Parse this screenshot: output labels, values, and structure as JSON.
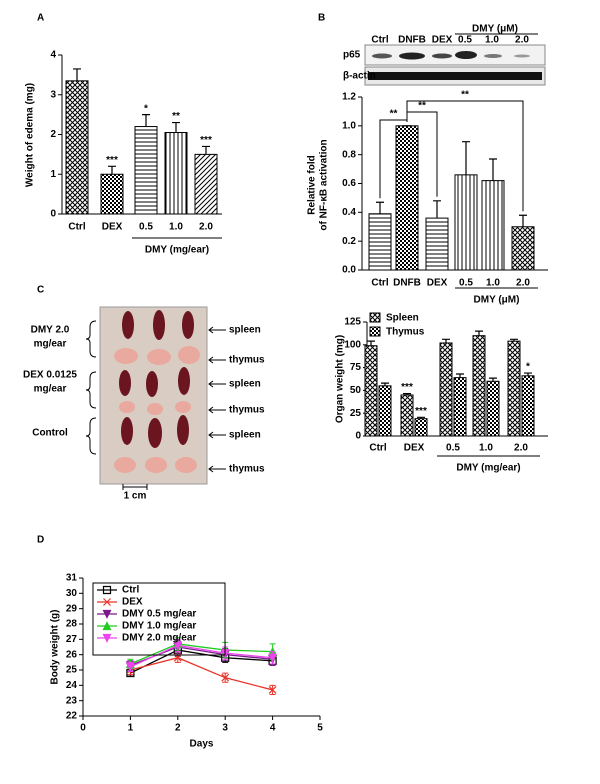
{
  "chart_data": [
    {
      "panel": "A",
      "type": "bar",
      "categories": [
        "Ctrl",
        "DEX",
        "0.5",
        "1.0",
        "2.0"
      ],
      "values": [
        3.35,
        1.0,
        2.2,
        2.05,
        1.5
      ],
      "errors": [
        0.3,
        0.2,
        0.3,
        0.25,
        0.2
      ],
      "significance": [
        null,
        "***",
        "*",
        "**",
        "***"
      ],
      "color": "#000000",
      "ylabel": "Weight of edema (mg)",
      "group_label": "DMY (mg/ear)",
      "ylim": [
        0,
        4
      ],
      "yticks": [
        0,
        1,
        2,
        3,
        4
      ]
    },
    {
      "panel": "B",
      "type": "bar",
      "blot": {
        "lanes": [
          "Ctrl",
          "DNFB",
          "DEX",
          "0.5",
          "1.0",
          "2.0"
        ],
        "group_label": "DMY (μM)",
        "rows": [
          "p65",
          "β-actin"
        ]
      },
      "categories": [
        "Ctrl",
        "DNFB",
        "DEX",
        "0.5",
        "1.0",
        "2.0"
      ],
      "values": [
        0.39,
        1.0,
        0.36,
        0.66,
        0.62,
        0.3
      ],
      "errors": [
        0.08,
        0.0,
        0.12,
        0.23,
        0.15,
        0.08
      ],
      "comparisons": [
        {
          "pair": [
            0,
            1
          ],
          "label": "**"
        },
        {
          "pair": [
            1,
            2
          ],
          "label": "**"
        },
        {
          "pair": [
            1,
            5
          ],
          "label": "**"
        }
      ],
      "color": "#000000",
      "ylabel": [
        "Relative fold",
        "of NF-κB activation"
      ],
      "group_label": "DMY (μM)",
      "ylim": [
        0,
        1.2
      ],
      "yticks": [
        {
          "value": 0,
          "label": "0.0"
        },
        0.2,
        0.4,
        0.6,
        0.8,
        {
          "value": 1,
          "label": "1.0"
        },
        1.2
      ]
    },
    {
      "panel": "C",
      "type": "bar",
      "photo": {
        "groups": [
          [
            "DMY 2.0",
            "mg/ear"
          ],
          [
            "DEX 0.0125",
            "mg/ear"
          ],
          [
            "Control"
          ]
        ],
        "organs": [
          "spleen",
          "thymus",
          "spleen",
          "thymus",
          "spleen",
          "thymus"
        ],
        "scale": "1 cm"
      },
      "categories": [
        "Ctrl",
        "DEX",
        "0.5",
        "1.0",
        "2.0"
      ],
      "series": [
        {
          "name": "Spleen",
          "color": "#000000",
          "values": [
            99,
            45,
            102,
            110,
            104
          ],
          "errors": [
            5,
            1.5,
            4,
            5,
            2
          ],
          "significance": [
            null,
            "***",
            null,
            null,
            null
          ]
        },
        {
          "name": "Thymus",
          "color": "#000000",
          "values": [
            55,
            19,
            64,
            60,
            66
          ],
          "errors": [
            3,
            1.5,
            4,
            3.5,
            3
          ],
          "significance": [
            null,
            "***",
            null,
            null,
            "*"
          ]
        }
      ],
      "ylabel": "Organ weight (mg)",
      "group_label": "DMY (mg/ear)",
      "ylim": [
        0,
        125
      ],
      "yticks": [
        0,
        25,
        50,
        75,
        100,
        125
      ]
    },
    {
      "panel": "D",
      "type": "line",
      "x": [
        1,
        2,
        3,
        4
      ],
      "series": [
        {
          "name": "Ctrl",
          "color": "#000000",
          "marker": "square",
          "values": [
            24.8,
            26.3,
            25.8,
            25.6
          ],
          "errors": [
            0.2,
            0.4,
            0.3,
            0.3
          ]
        },
        {
          "name": "DEX",
          "color": "#e8332a",
          "marker": "x",
          "values": [
            25.0,
            25.8,
            24.5,
            23.7
          ],
          "errors": [
            0.3,
            0.3,
            0.3,
            0.3
          ]
        },
        {
          "name": "DMY 0.5 mg/ear",
          "color": "#7a1a8c",
          "marker": "down",
          "values": [
            25.3,
            26.5,
            26.0,
            25.7
          ],
          "errors": [
            0.3,
            0.4,
            0.4,
            0.4
          ]
        },
        {
          "name": "DMY 1.0 mg/ear",
          "color": "#22cc22",
          "marker": "up",
          "values": [
            25.4,
            26.7,
            26.3,
            26.2
          ],
          "errors": [
            0.3,
            0.4,
            0.5,
            0.5
          ]
        },
        {
          "name": "DMY 2.0 mg/ear",
          "color": "#ee44ee",
          "marker": "down",
          "values": [
            25.2,
            26.6,
            26.1,
            25.8
          ],
          "errors": [
            0.3,
            0.4,
            0.4,
            0.4
          ]
        }
      ],
      "xlabel": "Days",
      "ylabel": "Body weight (g)",
      "xlim": [
        0,
        5
      ],
      "xticks": [
        0,
        1,
        2,
        3,
        4,
        5
      ],
      "ylim": [
        22,
        31
      ],
      "yticks": [
        22,
        23,
        24,
        25,
        26,
        27,
        28,
        29,
        30,
        31
      ]
    }
  ]
}
